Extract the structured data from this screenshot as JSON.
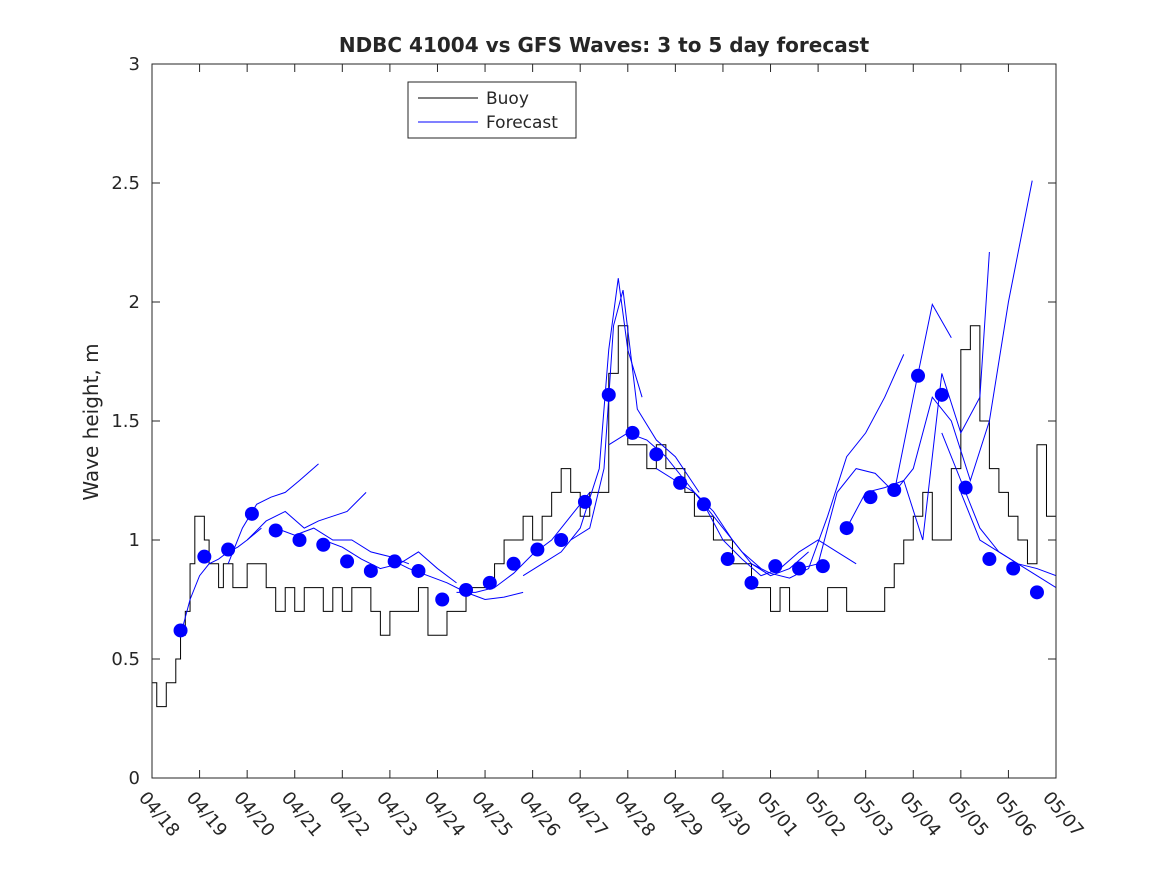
{
  "chart_data": {
    "type": "line",
    "title": "NDBC 41004 vs GFS Waves: 3 to 5 day forecast",
    "xlabel": "",
    "ylabel": "Wave height, m",
    "xlim": [
      "04/18",
      "05/07"
    ],
    "ylim": [
      0,
      3
    ],
    "yticks": [
      "0",
      "0.5",
      "1",
      "1.5",
      "2",
      "2.5",
      "3"
    ],
    "xticks": [
      "04/18",
      "04/19",
      "04/20",
      "04/21",
      "04/22",
      "04/23",
      "04/24",
      "04/25",
      "04/26",
      "04/27",
      "04/28",
      "04/29",
      "04/30",
      "05/01",
      "05/02",
      "05/03",
      "05/04",
      "05/05",
      "05/06",
      "05/07"
    ],
    "grid": false,
    "legend_position": "top-left",
    "legend": [
      "Buoy",
      "Forecast"
    ],
    "colors": {
      "buoy": "#000000",
      "forecast": "#0000ff",
      "points": "#0000ff"
    },
    "buoy": {
      "name": "Buoy",
      "x": [
        0,
        0.1,
        0.2,
        0.3,
        0.4,
        0.5,
        0.6,
        0.7,
        0.8,
        0.9,
        1.0,
        1.1,
        1.2,
        1.3,
        1.4,
        1.5,
        1.6,
        1.7,
        1.8,
        1.9,
        2.0,
        2.2,
        2.4,
        2.6,
        2.8,
        3.0,
        3.2,
        3.4,
        3.6,
        3.8,
        4.0,
        4.2,
        4.4,
        4.6,
        4.8,
        5.0,
        5.2,
        5.4,
        5.6,
        5.8,
        6.0,
        6.2,
        6.4,
        6.6,
        6.8,
        7.0,
        7.2,
        7.4,
        7.6,
        7.8,
        8.0,
        8.2,
        8.4,
        8.6,
        8.8,
        9.0,
        9.2,
        9.4,
        9.6,
        9.8,
        10.0,
        10.2,
        10.4,
        10.6,
        10.8,
        11.0,
        11.2,
        11.4,
        11.6,
        11.8,
        12.0,
        12.2,
        12.4,
        12.6,
        12.8,
        13.0,
        13.2,
        13.4,
        13.6,
        13.8,
        14.0,
        14.2,
        14.4,
        14.6,
        14.8,
        15.0,
        15.2,
        15.4,
        15.6,
        15.8,
        16.0,
        16.2,
        16.4,
        16.6,
        16.8,
        17.0,
        17.2,
        17.4,
        17.6,
        17.8,
        18.0,
        18.2,
        18.4,
        18.6,
        18.8,
        19.0
      ],
      "y": [
        0.4,
        0.3,
        0.3,
        0.4,
        0.4,
        0.5,
        0.6,
        0.7,
        0.9,
        1.1,
        1.1,
        1.0,
        0.9,
        0.9,
        0.8,
        0.9,
        0.9,
        0.8,
        0.8,
        0.8,
        0.9,
        0.9,
        0.8,
        0.7,
        0.8,
        0.7,
        0.8,
        0.8,
        0.7,
        0.8,
        0.7,
        0.8,
        0.8,
        0.7,
        0.6,
        0.7,
        0.7,
        0.7,
        0.8,
        0.6,
        0.6,
        0.7,
        0.7,
        0.8,
        0.8,
        0.8,
        0.9,
        1.0,
        1.0,
        1.1,
        1.0,
        1.1,
        1.2,
        1.3,
        1.2,
        1.1,
        1.2,
        1.2,
        1.7,
        1.9,
        1.4,
        1.4,
        1.3,
        1.4,
        1.3,
        1.3,
        1.2,
        1.1,
        1.1,
        1.0,
        1.0,
        0.9,
        0.9,
        0.8,
        0.8,
        0.7,
        0.8,
        0.7,
        0.7,
        0.7,
        0.7,
        0.8,
        0.8,
        0.7,
        0.7,
        0.7,
        0.7,
        0.8,
        0.9,
        1.0,
        1.1,
        1.2,
        1.0,
        1.0,
        1.3,
        1.8,
        1.9,
        1.5,
        1.3,
        1.2,
        1.1,
        1.0,
        0.9,
        1.4,
        1.1,
        1.0
      ]
    },
    "forecast_series": [
      {
        "x": [
          0.6,
          0.8,
          1.0,
          1.2,
          1.4,
          1.6,
          1.8,
          2.0,
          2.3
        ],
        "y": [
          0.6,
          0.75,
          0.85,
          0.9,
          0.92,
          0.95,
          0.97,
          1.0,
          1.05
        ]
      },
      {
        "x": [
          1.6,
          1.9,
          2.2,
          2.5,
          2.8,
          3.1,
          3.5
        ],
        "y": [
          0.9,
          1.05,
          1.15,
          1.18,
          1.2,
          1.25,
          1.32
        ]
      },
      {
        "x": [
          2.0,
          2.4,
          2.8,
          3.2,
          3.5,
          3.8,
          4.1,
          4.5
        ],
        "y": [
          1.0,
          1.08,
          1.12,
          1.05,
          1.08,
          1.1,
          1.12,
          1.2
        ]
      },
      {
        "x": [
          2.6,
          3.0,
          3.4,
          3.8,
          4.2,
          4.6,
          5.0,
          5.4
        ],
        "y": [
          1.05,
          1.02,
          1.05,
          1.0,
          1.0,
          0.95,
          0.93,
          0.9
        ]
      },
      {
        "x": [
          3.6,
          4.0,
          4.4,
          4.8,
          5.2,
          5.6,
          6.0,
          6.4
        ],
        "y": [
          1.0,
          0.97,
          0.92,
          0.88,
          0.9,
          0.95,
          0.88,
          0.82
        ]
      },
      {
        "x": [
          5.0,
          5.4,
          5.8,
          6.2,
          6.6,
          7.0,
          7.4,
          7.8
        ],
        "y": [
          0.92,
          0.88,
          0.85,
          0.82,
          0.78,
          0.75,
          0.76,
          0.78
        ]
      },
      {
        "x": [
          6.4,
          6.8,
          7.2,
          7.6,
          8.0,
          8.4,
          8.8,
          9.2
        ],
        "y": [
          0.78,
          0.78,
          0.8,
          0.86,
          0.94,
          1.0,
          1.1,
          1.2
        ]
      },
      {
        "x": [
          7.8,
          8.2,
          8.6,
          9.0,
          9.4,
          9.6,
          9.8,
          10.0,
          10.3
        ],
        "y": [
          0.85,
          0.9,
          0.95,
          1.05,
          1.3,
          1.8,
          2.1,
          1.8,
          1.6
        ]
      },
      {
        "x": [
          8.8,
          9.2,
          9.5,
          9.7,
          9.9,
          10.2,
          10.6,
          11.0,
          11.5
        ],
        "y": [
          1.0,
          1.05,
          1.3,
          1.9,
          2.05,
          1.55,
          1.42,
          1.35,
          1.2
        ]
      },
      {
        "x": [
          9.6,
          10.0,
          10.4,
          10.8,
          11.2,
          11.6,
          12.0,
          12.4,
          12.8
        ],
        "y": [
          1.4,
          1.45,
          1.42,
          1.35,
          1.25,
          1.15,
          1.05,
          0.95,
          0.88
        ]
      },
      {
        "x": [
          10.6,
          11.0,
          11.4,
          11.8,
          12.2,
          12.6,
          13.0,
          13.4,
          13.8
        ],
        "y": [
          1.3,
          1.25,
          1.2,
          1.12,
          1.0,
          0.9,
          0.85,
          0.88,
          0.95
        ]
      },
      {
        "x": [
          11.6,
          12.0,
          12.4,
          12.8,
          13.2,
          13.6,
          14.0,
          14.4,
          14.8
        ],
        "y": [
          1.15,
          1.0,
          0.92,
          0.85,
          0.88,
          0.95,
          1.0,
          0.95,
          0.9
        ]
      },
      {
        "x": [
          12.6,
          13.0,
          13.4,
          13.8,
          14.2,
          14.6,
          15.0,
          15.4,
          15.8
        ],
        "y": [
          0.9,
          0.86,
          0.84,
          0.88,
          1.1,
          1.35,
          1.45,
          1.6,
          1.78
        ]
      },
      {
        "x": [
          13.6,
          14.0,
          14.4,
          14.8,
          15.2,
          15.6,
          16.0,
          16.4,
          16.8
        ],
        "y": [
          0.88,
          0.9,
          1.2,
          1.3,
          1.28,
          1.2,
          1.6,
          1.99,
          1.85
        ]
      },
      {
        "x": [
          14.6,
          15.0,
          15.4,
          15.8,
          16.2,
          16.6,
          17.0,
          17.4,
          17.6
        ],
        "y": [
          1.05,
          1.2,
          1.22,
          1.25,
          1.0,
          1.7,
          1.45,
          1.6,
          2.21
        ]
      },
      {
        "x": [
          15.6,
          16.0,
          16.4,
          16.8,
          17.2,
          17.6,
          18.0,
          18.5
        ],
        "y": [
          1.2,
          1.3,
          1.6,
          1.5,
          1.25,
          1.5,
          2.0,
          2.51
        ]
      },
      {
        "x": [
          16.6,
          17.0,
          17.4,
          17.8,
          18.2,
          18.6,
          19.0
        ],
        "y": [
          1.45,
          1.25,
          1.05,
          0.95,
          0.9,
          0.85,
          0.8
        ]
      },
      {
        "x": [
          17.0,
          17.4,
          17.8,
          18.2,
          18.6,
          19.0
        ],
        "y": [
          1.2,
          1.0,
          0.95,
          0.9,
          0.88,
          0.85
        ]
      }
    ],
    "forecast_points": {
      "x": [
        0.6,
        1.1,
        1.6,
        2.1,
        2.6,
        3.1,
        3.6,
        4.1,
        4.6,
        5.1,
        5.6,
        6.1,
        6.6,
        7.1,
        7.6,
        8.1,
        8.6,
        9.1,
        9.6,
        10.1,
        10.6,
        11.1,
        11.6,
        12.1,
        12.6,
        13.1,
        13.6,
        14.1,
        14.6,
        15.1,
        15.6,
        16.1,
        16.6,
        17.1,
        17.6,
        18.1,
        18.6
      ],
      "y": [
        0.62,
        0.93,
        0.96,
        1.11,
        1.04,
        1.0,
        0.98,
        0.91,
        0.87,
        0.91,
        0.87,
        0.75,
        0.79,
        0.82,
        0.9,
        0.96,
        1.0,
        1.16,
        1.61,
        1.45,
        1.36,
        1.24,
        1.15,
        0.92,
        0.82,
        0.89,
        0.88,
        0.89,
        1.05,
        1.18,
        1.21,
        1.69,
        1.61,
        1.22,
        0.92,
        0.88,
        0.78
      ]
    }
  }
}
